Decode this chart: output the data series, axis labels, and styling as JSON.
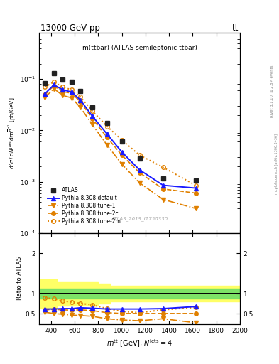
{
  "title_left": "13000 GeV pp",
  "title_right": "tt",
  "inner_title": "m(ttbar) (ATLAS semileptonic ttbar)",
  "watermark": "ATLAS_2019_I1750330",
  "right_label_top": "Rivet 3.1.10, ≥ 2.8M events",
  "right_label_bot": "mcplots.cern.ch [arXiv:1306.3436]",
  "x_centers": [
    350,
    425,
    500,
    575,
    650,
    750,
    875,
    1000,
    1150,
    1350,
    1625
  ],
  "atlas_y": [
    0.083,
    0.13,
    0.097,
    0.088,
    0.058,
    0.028,
    0.014,
    0.006,
    0.0028,
    0.00115,
    0.00105
  ],
  "pythia_default_y": [
    0.052,
    0.077,
    0.062,
    0.056,
    0.039,
    0.019,
    0.0085,
    0.0038,
    0.0017,
    0.00085,
    0.00075
  ],
  "pythia_tune1_y": [
    0.044,
    0.065,
    0.048,
    0.043,
    0.028,
    0.013,
    0.0052,
    0.0022,
    0.00095,
    0.00045,
    0.0003
  ],
  "pythia_tune2c_y": [
    0.05,
    0.074,
    0.057,
    0.053,
    0.036,
    0.017,
    0.0073,
    0.0033,
    0.0015,
    0.00072,
    0.0006
  ],
  "pythia_tune2m_y": [
    0.07,
    0.088,
    0.07,
    0.062,
    0.045,
    0.024,
    0.012,
    0.0065,
    0.0033,
    0.0019,
    0.00085
  ],
  "ratio_default": [
    0.62,
    0.62,
    0.63,
    0.63,
    0.65,
    0.64,
    0.62,
    0.62,
    0.62,
    0.63,
    0.68
  ],
  "ratio_tune1": [
    0.54,
    0.51,
    0.49,
    0.47,
    0.46,
    0.44,
    0.38,
    0.35,
    0.33,
    0.38,
    0.28
  ],
  "ratio_tune2c": [
    0.6,
    0.61,
    0.6,
    0.59,
    0.6,
    0.58,
    0.53,
    0.51,
    0.51,
    0.51,
    0.51
  ],
  "ratio_tune2m": [
    0.9,
    0.87,
    0.82,
    0.79,
    0.76,
    0.72,
    0.63,
    0.56,
    0.53,
    0.6,
    0.66
  ],
  "y_band_lo": [
    0.65,
    0.65,
    0.7,
    0.7,
    0.7,
    0.7,
    0.7,
    0.75,
    0.8,
    0.8,
    0.8
  ],
  "y_band_hi": [
    1.35,
    1.35,
    1.3,
    1.3,
    1.3,
    1.3,
    1.3,
    1.25,
    1.2,
    1.2,
    1.2
  ],
  "g_band_lo": [
    0.88,
    0.88,
    0.88,
    0.88,
    0.88,
    0.88,
    0.88,
    0.88,
    0.88,
    0.88,
    0.88
  ],
  "g_band_hi": [
    1.12,
    1.12,
    1.12,
    1.12,
    1.12,
    1.12,
    1.12,
    1.12,
    1.12,
    1.12,
    1.12
  ],
  "x_band_edges": [
    300,
    400,
    450,
    500,
    550,
    600,
    700,
    800,
    900,
    1100,
    1300,
    2000
  ],
  "color_atlas": "#222222",
  "color_default": "#1a1aff",
  "color_orange": "#e08000",
  "xlim": [
    300,
    2000
  ],
  "ylim_main": [
    0.0001,
    0.8
  ],
  "ylim_ratio": [
    0.25,
    2.5
  ]
}
